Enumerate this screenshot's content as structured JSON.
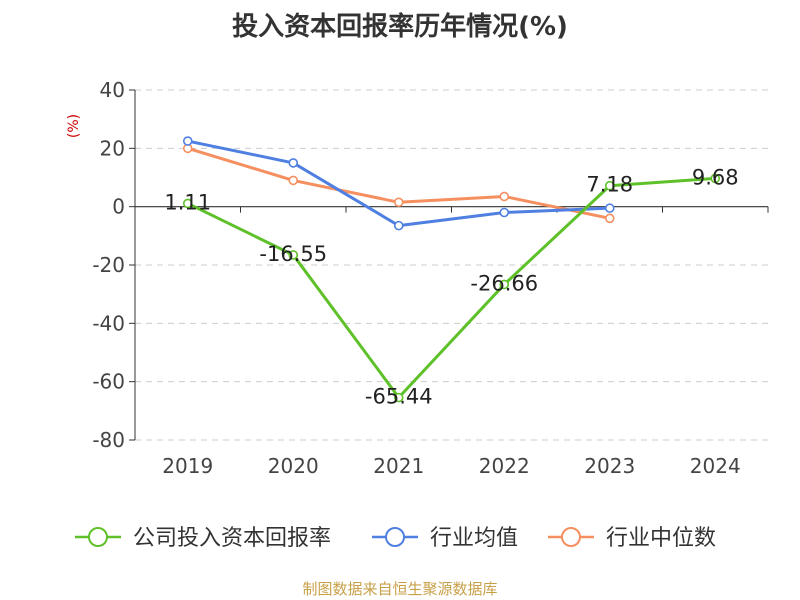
{
  "chart_data": {
    "type": "line",
    "title": "投入资本回报率历年情况(%)",
    "ylabel": "(%)",
    "xlabel": "",
    "categories": [
      "2019",
      "2020",
      "2021",
      "2022",
      "2023",
      "2024"
    ],
    "ylim": [
      -80,
      40
    ],
    "yticks": [
      40,
      20,
      0,
      -20,
      -40,
      -60,
      -80
    ],
    "grid": true,
    "legend_position": "bottom",
    "series": [
      {
        "name": "公司投入资本回报率",
        "color": "#5fc12a",
        "values": [
          1.11,
          -16.55,
          -65.44,
          -26.66,
          7.18,
          9.68
        ],
        "labels": [
          "1.11",
          "-16.55",
          "-65.44",
          "-26.66",
          "7.18",
          "9.68"
        ]
      },
      {
        "name": "行业均值",
        "color": "#4f7fe0",
        "values": [
          22.5,
          15,
          -6.5,
          -2,
          -0.5,
          null
        ]
      },
      {
        "name": "行业中位数",
        "color": "#f58f5f",
        "values": [
          20,
          9,
          1.5,
          3.5,
          -4,
          null
        ]
      }
    ]
  },
  "source_text": "制图数据来自恒生聚源数据库"
}
